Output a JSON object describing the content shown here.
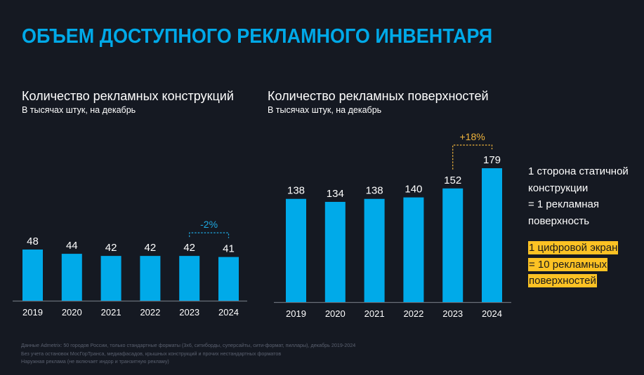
{
  "page": {
    "title": "ОБЪЕМ ДОСТУПНОГО РЕКЛАМНОГО ИНВЕНТАРЯ"
  },
  "colors": {
    "background": "#151922",
    "accent": "#00a9e8",
    "bar": "#00aae9",
    "highlight": "#fcc224",
    "growth_label": "#f0b43c",
    "decline_label": "#1fa9e1",
    "footnote": "#5b6170"
  },
  "chart_data": [
    {
      "type": "bar",
      "title": "Количество рекламных конструкций",
      "subtitle": "В тысячах штук, на декабрь",
      "categories": [
        "2019",
        "2020",
        "2021",
        "2022",
        "2023",
        "2024"
      ],
      "values": [
        48,
        44,
        42,
        42,
        42,
        41
      ],
      "data_labels": [
        "48",
        "44",
        "42",
        "42",
        "42",
        "41"
      ],
      "xlabel": "",
      "ylabel": "",
      "ylim": [
        0,
        48
      ],
      "grid": false,
      "legend": "none",
      "annotation": {
        "text": "-2%",
        "from": "2023",
        "to": "2024",
        "style": "dashed-bracket",
        "color": "#1fa9e1"
      }
    },
    {
      "type": "bar",
      "title": "Количество рекламных поверхностей",
      "subtitle": "В тысячах штук, на декабрь",
      "categories": [
        "2019",
        "2020",
        "2021",
        "2022",
        "2023",
        "2024"
      ],
      "values": [
        138,
        134,
        138,
        140,
        152,
        179
      ],
      "data_labels": [
        "138",
        "134",
        "138",
        "140",
        "152",
        "179"
      ],
      "xlabel": "",
      "ylabel": "",
      "ylim": [
        0,
        179
      ],
      "grid": false,
      "legend": "none",
      "annotation": {
        "text": "+18%",
        "from": "2023",
        "to": "2024",
        "style": "dashed-bracket",
        "color": "#f0b43c"
      }
    }
  ],
  "side_note": {
    "lines": [
      "1 сторона статичной",
      "конструкции",
      "= 1 рекламная",
      "поверхность"
    ],
    "highlight_lines": [
      "1 цифровой экран",
      "= 10 рекламных",
      "поверхностей"
    ]
  },
  "footnotes": [
    "Данные Admetrix: 50 городов России, только стандартные форматы (3х6, ситиборды, суперсайты, сити-формат, пиллары), декабрь 2019-2024",
    "Без учета остановок МосГорТранса, медиафасадов, крышных конструкций и прочих нестандартных форматов",
    "Наружная реклама (не включает индор и транзитную рекламу)"
  ]
}
